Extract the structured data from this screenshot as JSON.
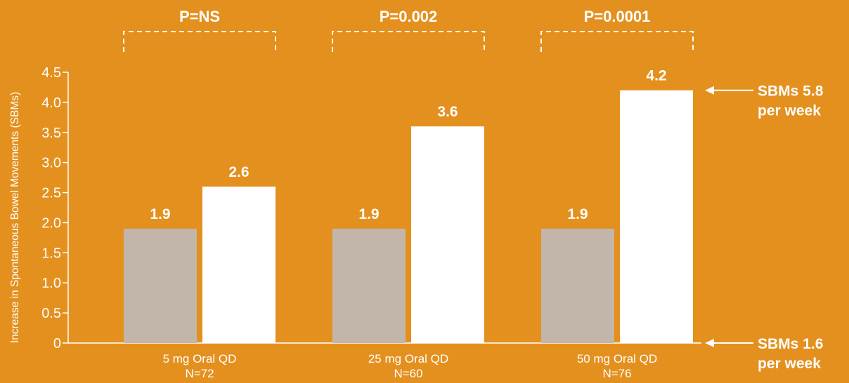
{
  "chart_data": {
    "type": "bar",
    "ylabel": "Increase in Spontaneous Bowel Movements (SBMs)",
    "ylim": [
      0,
      4.5
    ],
    "yticks": [
      "0",
      "0.5",
      "1.0",
      "1.5",
      "2.0",
      "2.5",
      "3.0",
      "3.5",
      "4.0",
      "4.5"
    ],
    "categories": [
      {
        "label": "5 mg Oral QD",
        "n": "N=72"
      },
      {
        "label": "25 mg Oral QD",
        "n": "N=60"
      },
      {
        "label": "50 mg Oral QD",
        "n": "N=76"
      }
    ],
    "series": [
      {
        "color": "#C2B6AA",
        "values": [
          1.9,
          1.9,
          1.9
        ],
        "labels": [
          "1.9",
          "1.9",
          "1.9"
        ]
      },
      {
        "color": "#FFFFFF",
        "values": [
          2.6,
          3.6,
          4.2
        ],
        "labels": [
          "2.6",
          "3.6",
          "4.2"
        ]
      }
    ],
    "p_values": [
      "P=NS",
      "P=0.002",
      "P=0.0001"
    ],
    "annotations": [
      {
        "line1": "SBMs 5.8",
        "line2": "per week",
        "at_value": 4.2
      },
      {
        "line1": "SBMs 1.6",
        "line2": "per week",
        "at_value": 0
      }
    ],
    "grid": false,
    "legend": "none"
  }
}
